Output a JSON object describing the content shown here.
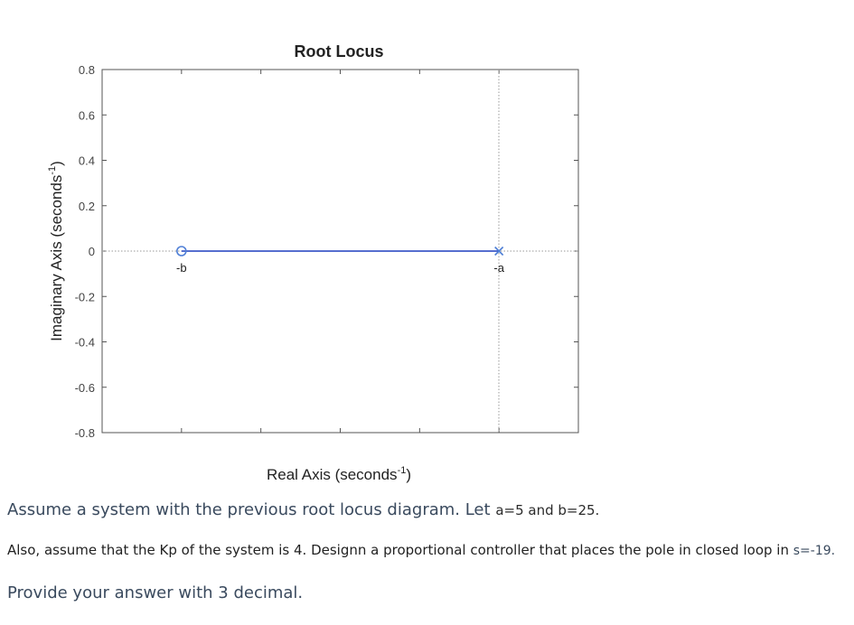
{
  "chart_data": {
    "type": "root-locus",
    "title": "Root Locus",
    "xlabel": "Real Axis (seconds",
    "xlabel_superscript": "-1",
    "xlabel_end": ")",
    "ylabel": "Imaginary Axis (seconds",
    "ylabel_superscript": "-1",
    "ylabel_end": ")",
    "ylim": [
      -0.8,
      0.8
    ],
    "yticks": [
      "0.8",
      "0.6",
      "0.4",
      "0.2",
      "0",
      "-0.2",
      "-0.4",
      "-0.6",
      "-0.8"
    ],
    "yvalues": [
      0.8,
      0.6,
      0.4,
      0.2,
      0,
      -0.2,
      -0.4,
      -0.6,
      -0.8
    ],
    "xlim": [
      -30,
      0
    ],
    "xticks": [
      -25,
      -20,
      -15,
      -10,
      -5,
      0
    ],
    "zero": {
      "x": -25,
      "y": 0,
      "label": "-b"
    },
    "pole": {
      "x": -5,
      "y": 0,
      "label": "-a"
    },
    "locus": [
      [
        -25,
        0
      ],
      [
        -5,
        0
      ]
    ],
    "grid": false,
    "colors": {
      "locus": "#1f3fbf",
      "marker": "#4f7fd6",
      "axis": "#555555",
      "reference": "#9a9a9a"
    }
  },
  "question": {
    "line1_main": "Assume a system with the previous root locus diagram. Let",
    "line1_small": "a=5 and b=25.",
    "line2_main": "Also, assume that the Kp of the system is 4. Designn a proportional controller that places the pole in closed loop in",
    "line2_small": "s=-19.",
    "line3": "Provide your answer with 3 decimal."
  }
}
